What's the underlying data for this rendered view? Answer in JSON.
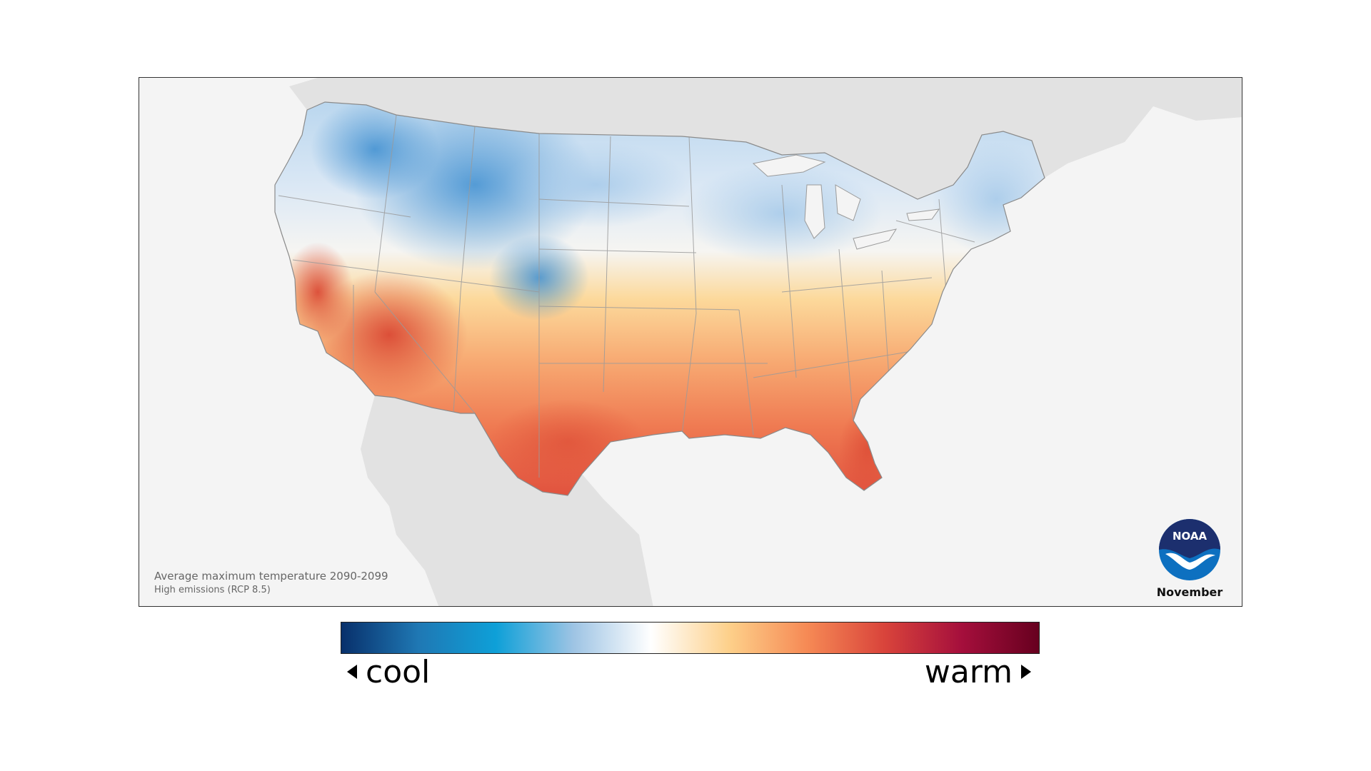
{
  "map": {
    "caption_title": "Average maximum temperature 2090-2099",
    "caption_subtitle": "High emissions (RCP 8.5)",
    "month": "November",
    "logo_text": "NOAA"
  },
  "legend": {
    "low_label": "cool",
    "high_label": "warm",
    "colors": [
      "#08306b",
      "#1f78b4",
      "#0ea0d8",
      "#9ec4e4",
      "#ffffff",
      "#fdd08a",
      "#f68a55",
      "#d9443b",
      "#a50f3c",
      "#67001f"
    ]
  },
  "palette": {
    "land_other": "#e2e2e2",
    "water": "#f4f4f4",
    "cold": "#3d8ed0",
    "cool": "#b9d6ee",
    "neutral": "#f4f7fb",
    "mild": "#fcd99b",
    "warm": "#f49c66",
    "hot": "#e45a3e",
    "border": "#9a9a9a"
  }
}
